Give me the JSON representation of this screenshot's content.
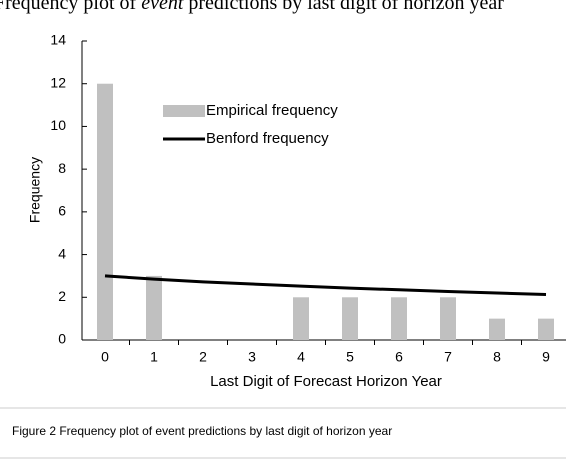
{
  "page": {
    "header_parts": [
      "Frequency plot of ",
      "event",
      " predictions by last digit of horizon year"
    ],
    "caption": "Figure 2 Frequency plot of event predictions by last digit of horizon year"
  },
  "chart_data": {
    "type": "bar",
    "categories": [
      "0",
      "1",
      "2",
      "3",
      "4",
      "5",
      "6",
      "7",
      "8",
      "9"
    ],
    "series": [
      {
        "name": "Empirical frequency",
        "type": "bar",
        "color": "#c0c0c0",
        "values": [
          12,
          3,
          0,
          0,
          2,
          2,
          2,
          2,
          1,
          1
        ]
      },
      {
        "name": "Benford frequency",
        "type": "line",
        "color": "#000000",
        "values": [
          3.0,
          2.85,
          2.72,
          2.62,
          2.52,
          2.43,
          2.35,
          2.27,
          2.2,
          2.13
        ]
      }
    ],
    "ylim": [
      0,
      14
    ],
    "yticks": [
      0,
      2,
      4,
      6,
      8,
      10,
      12,
      14
    ],
    "ylabel": "Frequency",
    "xlabel": "Last Digit of Forecast Horizon Year",
    "legend": "upper center"
  }
}
